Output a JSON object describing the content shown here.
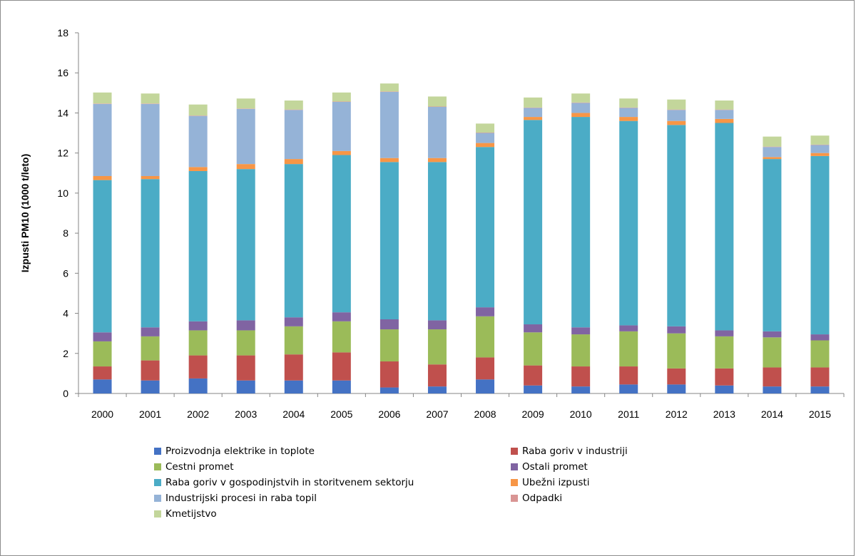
{
  "chart_data": {
    "type": "bar",
    "stacked": true,
    "ylabel": "Izpusti PM10 (1000 t/leto)",
    "ylim": [
      0,
      18
    ],
    "yticks": [
      "0",
      "2",
      "4",
      "6",
      "8",
      "10",
      "12",
      "14",
      "16",
      "18"
    ],
    "categories": [
      "2000",
      "2001",
      "2002",
      "2003",
      "2004",
      "2005",
      "2006",
      "2007",
      "2008",
      "2009",
      "2010",
      "2011",
      "2012",
      "2013",
      "2014",
      "2015"
    ],
    "legend_position": "bottom",
    "series": [
      {
        "name": "Proizvodnja elektrike in toplote",
        "color": "#4472C4",
        "values": [
          0.7,
          0.65,
          0.75,
          0.65,
          0.65,
          0.65,
          0.3,
          0.35,
          0.7,
          0.4,
          0.35,
          0.45,
          0.45,
          0.4,
          0.35,
          0.35
        ]
      },
      {
        "name": "Raba goriv v industriji",
        "color": "#C0504D",
        "values": [
          0.65,
          1.0,
          1.15,
          1.25,
          1.3,
          1.4,
          1.3,
          1.1,
          1.1,
          1.0,
          1.0,
          0.9,
          0.8,
          0.85,
          0.95,
          0.95
        ]
      },
      {
        "name": "Cestni promet",
        "color": "#9BBB59",
        "values": [
          1.25,
          1.2,
          1.25,
          1.25,
          1.4,
          1.55,
          1.6,
          1.75,
          2.05,
          1.65,
          1.6,
          1.75,
          1.75,
          1.6,
          1.5,
          1.35
        ]
      },
      {
        "name": "Ostali promet",
        "color": "#8064A2",
        "values": [
          0.45,
          0.45,
          0.45,
          0.5,
          0.45,
          0.45,
          0.5,
          0.45,
          0.45,
          0.4,
          0.35,
          0.3,
          0.35,
          0.3,
          0.3,
          0.3
        ]
      },
      {
        "name": "Raba goriv v gospodinjstvih in storitvenem sektorju",
        "color": "#4BACC6",
        "values": [
          7.6,
          7.4,
          7.5,
          7.55,
          7.65,
          7.85,
          7.85,
          7.9,
          8.0,
          10.2,
          10.5,
          10.2,
          10.05,
          10.35,
          8.6,
          8.9
        ]
      },
      {
        "name": "Ubežni izpusti",
        "color": "#F79646",
        "values": [
          0.2,
          0.15,
          0.2,
          0.25,
          0.25,
          0.2,
          0.2,
          0.2,
          0.2,
          0.15,
          0.2,
          0.2,
          0.2,
          0.2,
          0.1,
          0.15
        ]
      },
      {
        "name": "Industrijski procesi in raba topil",
        "color": "#95B3D7",
        "values": [
          3.6,
          3.6,
          2.55,
          2.75,
          2.45,
          2.45,
          3.3,
          2.55,
          0.5,
          0.45,
          0.5,
          0.45,
          0.55,
          0.45,
          0.5,
          0.4
        ]
      },
      {
        "name": "Odpadki",
        "color": "#D99594",
        "values": [
          0.02,
          0.02,
          0.02,
          0.02,
          0.02,
          0.02,
          0.02,
          0.02,
          0.02,
          0.02,
          0.02,
          0.02,
          0.02,
          0.02,
          0.02,
          0.02
        ]
      },
      {
        "name": "Kmetijstvo",
        "color": "#C3D69B",
        "values": [
          0.55,
          0.5,
          0.55,
          0.5,
          0.45,
          0.45,
          0.4,
          0.5,
          0.45,
          0.5,
          0.45,
          0.45,
          0.5,
          0.45,
          0.5,
          0.45
        ]
      }
    ]
  }
}
